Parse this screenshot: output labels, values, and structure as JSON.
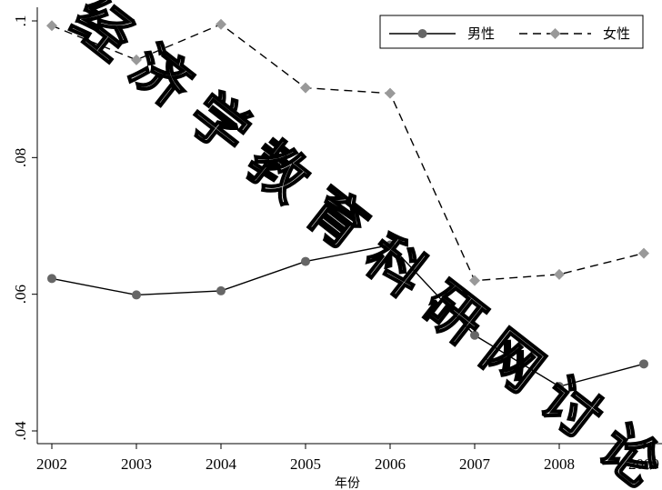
{
  "chart_data": {
    "type": "line",
    "xlabel": "年份",
    "ylabel": "",
    "x": [
      2002,
      2003,
      2004,
      2005,
      2006,
      2007,
      2008,
      2009
    ],
    "xlim": [
      2002,
      2009
    ],
    "ylim": [
      0.04,
      0.1
    ],
    "yticks": [
      0.04,
      0.06,
      0.08,
      0.1
    ],
    "ytick_labels": [
      ".04",
      ".06",
      ".08",
      ".1"
    ],
    "grid": false,
    "legend_position": "top-right",
    "series": [
      {
        "name": "男性",
        "values": [
          0.0623,
          0.0599,
          0.0605,
          0.0648,
          0.0672,
          0.054,
          0.0465,
          0.0498
        ],
        "color": "#000000",
        "marker_color": "#666666",
        "marker": "circle",
        "line_style": "solid"
      },
      {
        "name": "女性",
        "values": [
          0.0993,
          0.0943,
          0.0995,
          0.0902,
          0.0894,
          0.062,
          0.0629,
          0.066
        ],
        "color": "#000000",
        "marker_color": "#999999",
        "marker": "diamond",
        "line_style": "dashed"
      }
    ],
    "watermark": "经济学教育科研网讨论"
  }
}
